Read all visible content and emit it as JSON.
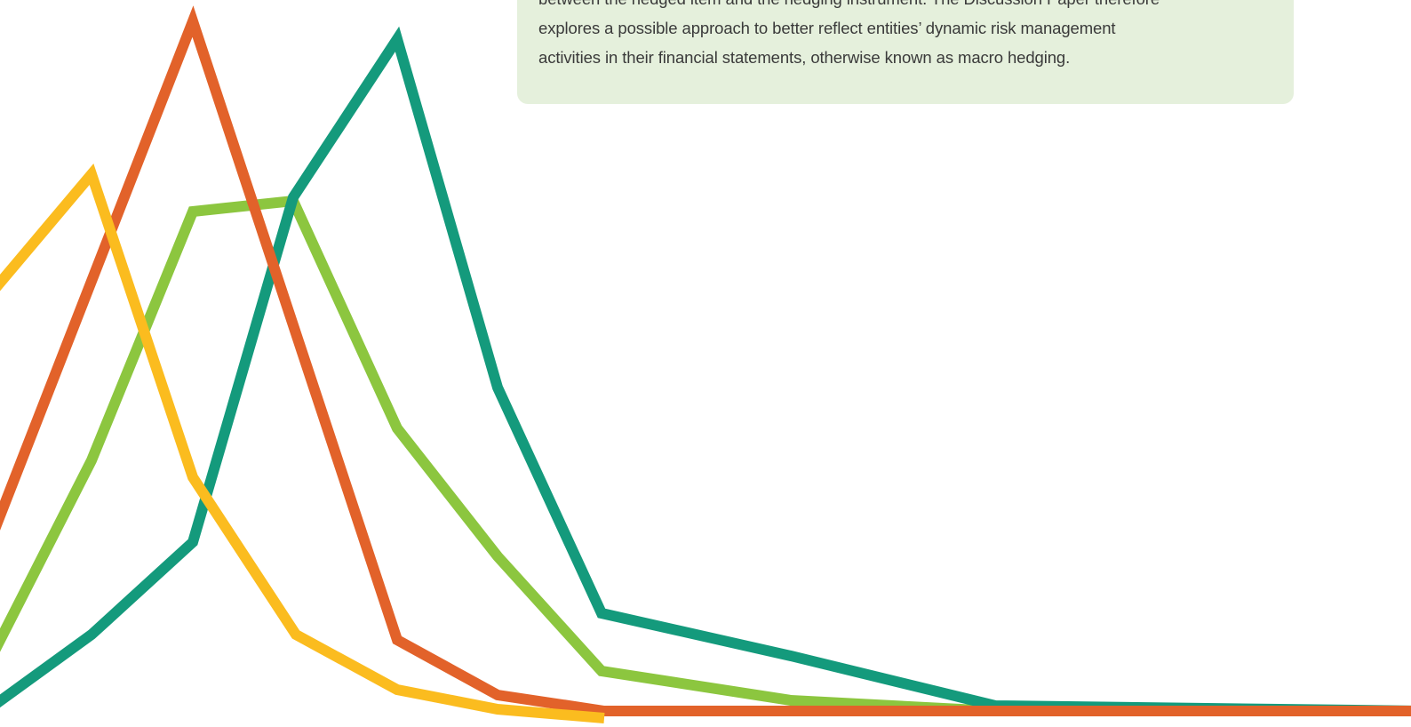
{
  "text_box": {
    "lines": [
      "between the hedged item and the hedging instrument. The Discussion Paper therefore",
      "explores a possible approach to better reflect entities’ dynamic risk management",
      "activities in their financial statements, otherwise known as macro hedging."
    ]
  }
}
